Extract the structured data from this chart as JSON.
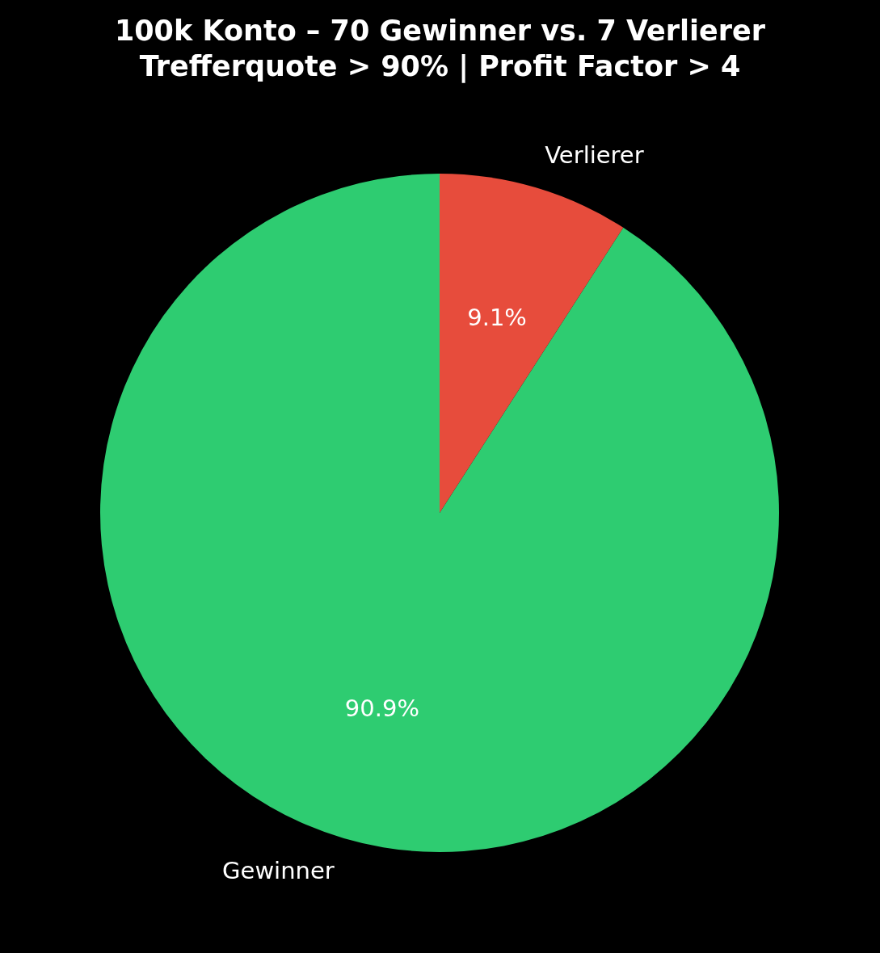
{
  "chart_data": {
    "type": "pie",
    "title": "100k Konto – 70 Gewinner vs. 7 Verlierer\nTrefferquote > 90% | Profit Factor > 4",
    "categories": [
      "Gewinner",
      "Verlierer"
    ],
    "values": [
      90.9,
      9.1
    ],
    "colors": [
      "#2ecc71",
      "#e74c3c"
    ],
    "value_labels": [
      "90.9%",
      "9.1%"
    ]
  }
}
